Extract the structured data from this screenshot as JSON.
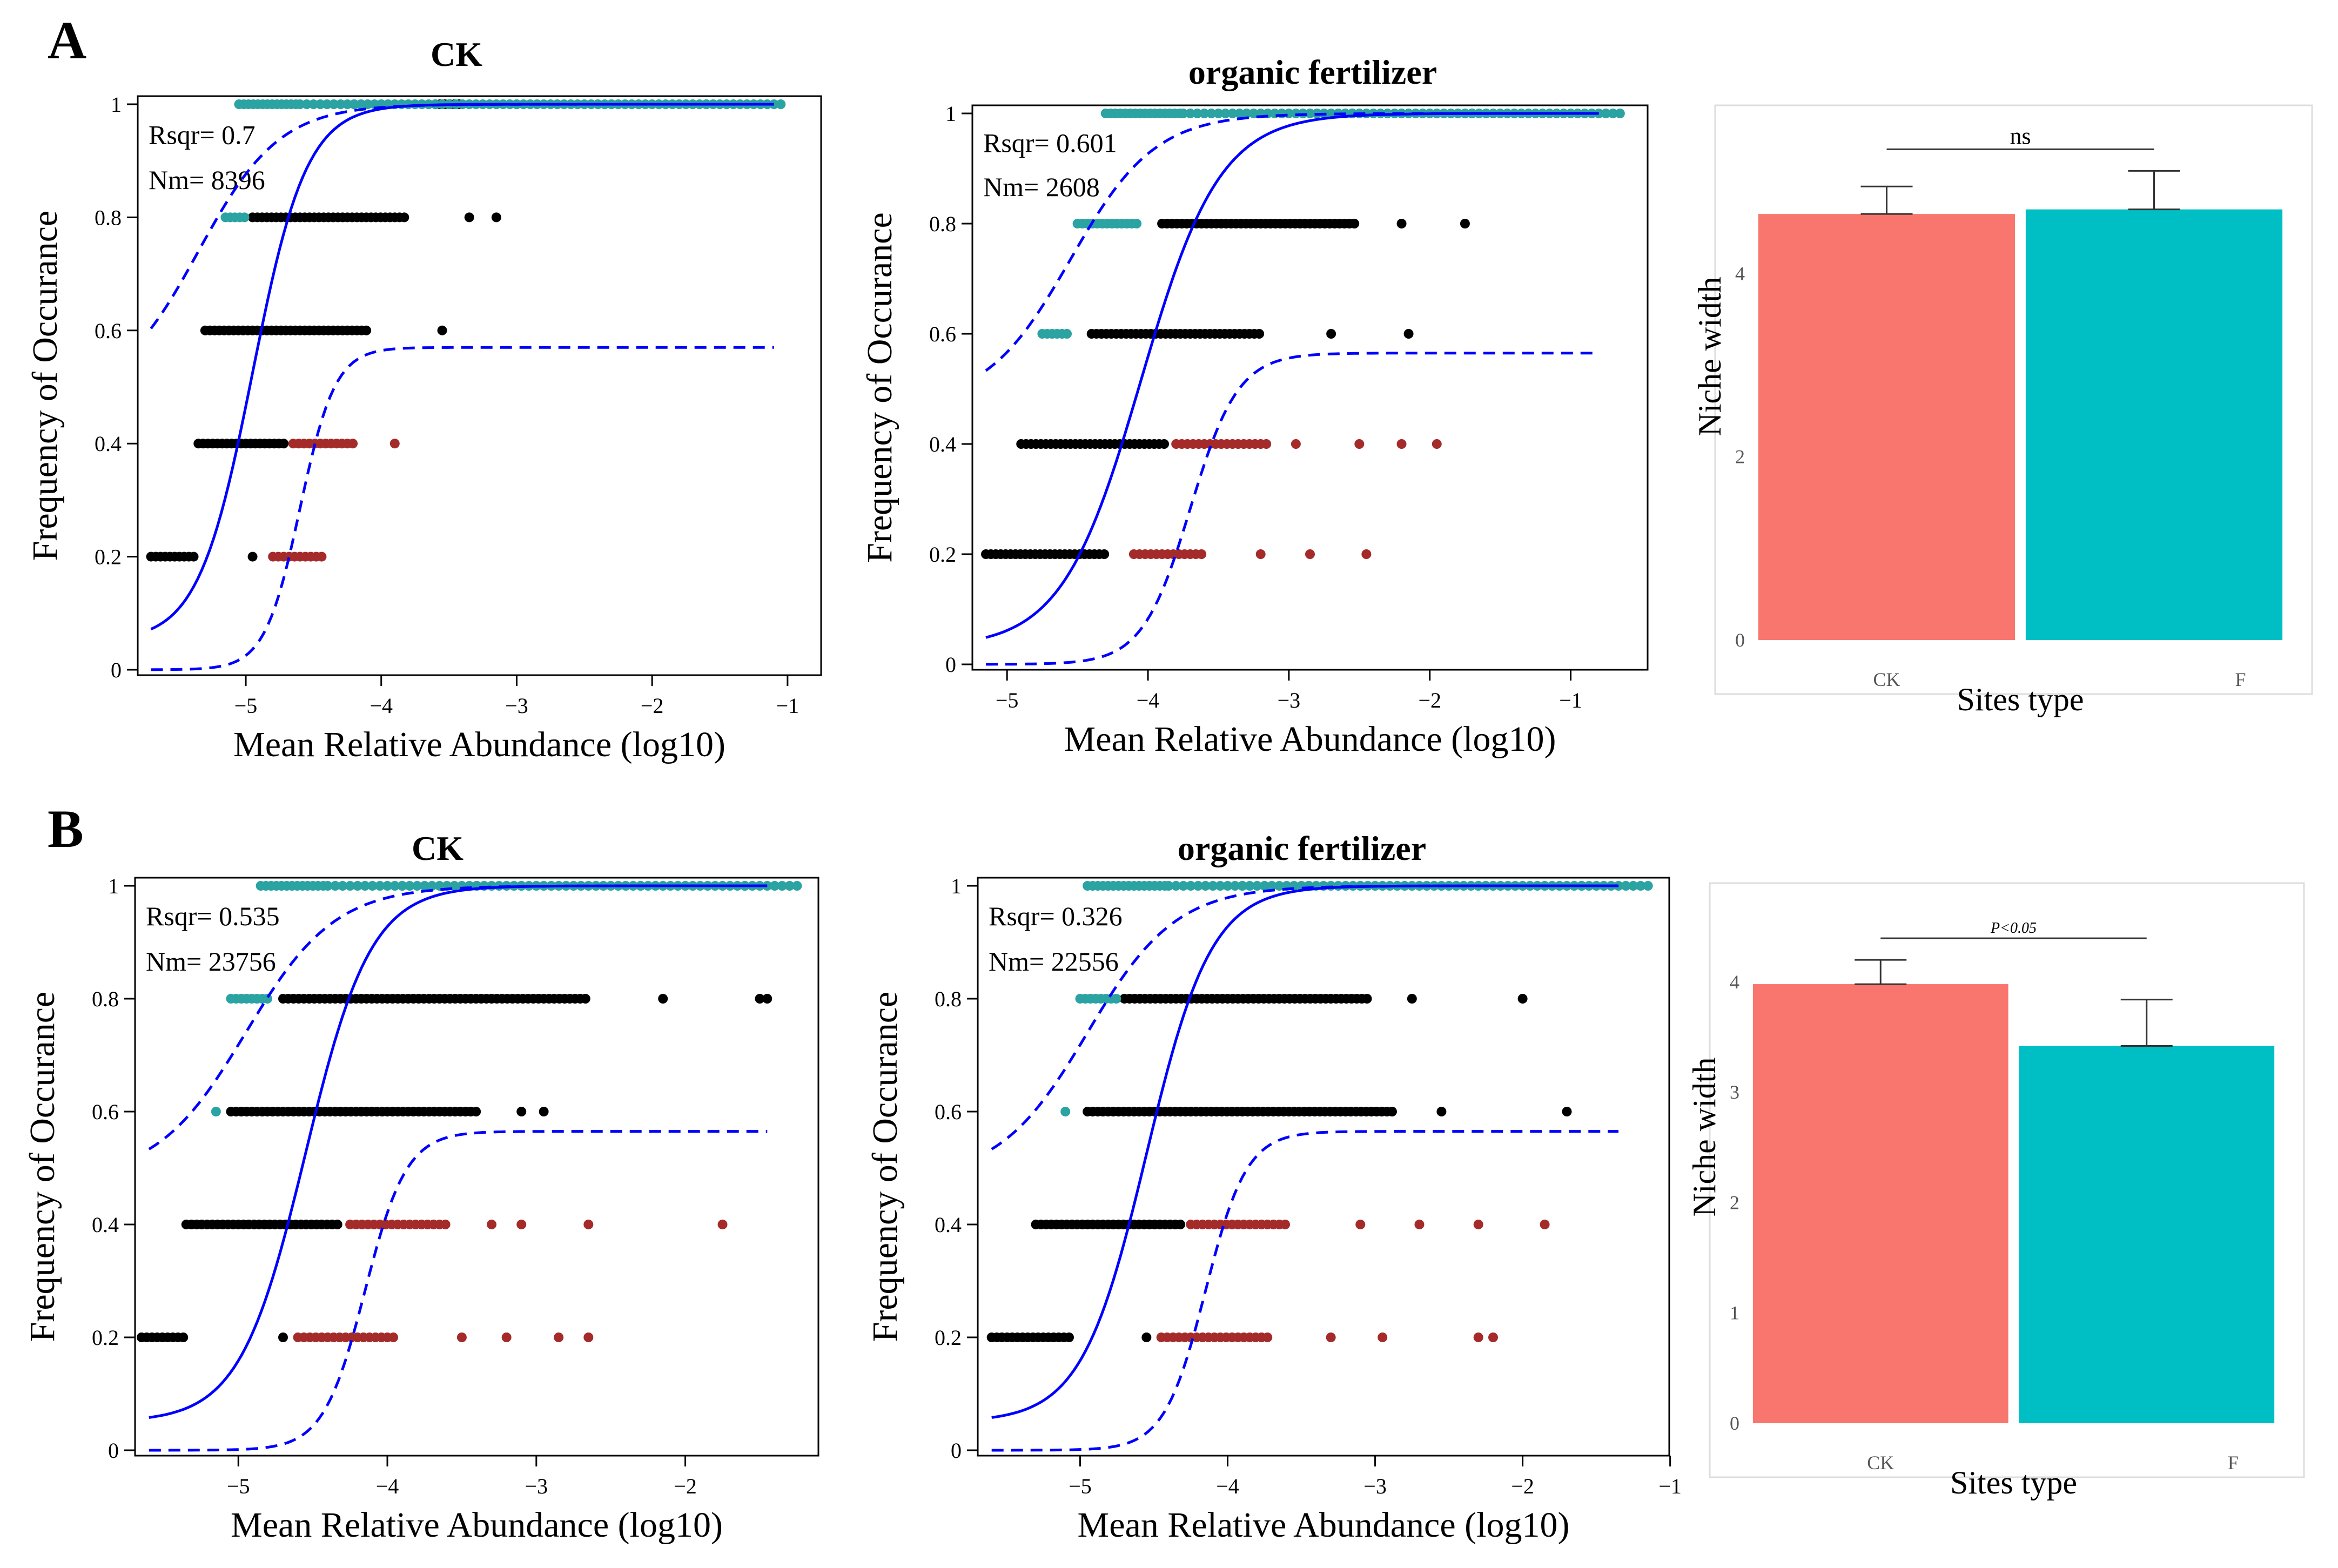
{
  "panels": [
    {
      "id": "A",
      "label": "A",
      "neutral": [
        {
          "title": "CK",
          "rsqr": "Rsqr= 0.7",
          "nm": "Nm= 8396",
          "xlabel": "Mean Relative Abundance (log10)",
          "ylabel": "Frequency of Occurance",
          "xlim": [
            -5.75,
            -0.8
          ],
          "ylim": [
            0,
            1
          ],
          "xticks": [
            -5,
            -4,
            -3,
            -2,
            -1
          ],
          "yticks": [
            0,
            0.2,
            0.4,
            0.6,
            0.8,
            1
          ],
          "ytick_labels": [
            "0",
            "0.2",
            "0.4",
            "0.6",
            "0.8",
            "1"
          ],
          "fit": {
            "m_log10": -4.95,
            "scale": 0.2,
            "min_y": 0.05
          },
          "upper": {
            "m_log10": -5.35,
            "scale": 0.3,
            "min_y": 0.48
          },
          "lower": {
            "m_log10": -4.6,
            "scale": 0.13,
            "max_y": 0.57,
            "min_y": 0.0
          },
          "points": [
            {
              "y": 1.0,
              "cyan": [
                -5.05,
                -4.6,
                -4.2,
                -3.6,
                -3.0,
                -2.3,
                -1.6,
                -1.0
              ],
              "black": [
                -3.6,
                -3.4
              ],
              "red": []
            },
            {
              "y": 0.8,
              "cyan": [
                -5.15,
                -5.0
              ],
              "black": [
                -4.95,
                -3.8,
                -3.35,
                -3.15
              ],
              "red": []
            },
            {
              "y": 0.6,
              "cyan": [],
              "black": [
                -5.3,
                -4.1,
                -3.55
              ],
              "red": []
            },
            {
              "y": 0.4,
              "cyan": [],
              "black": [
                -5.35,
                -4.7
              ],
              "red": [
                -4.65,
                -4.2,
                -3.9
              ]
            },
            {
              "y": 0.2,
              "cyan": [],
              "black": [
                -5.7,
                -5.35,
                -4.95
              ],
              "red": [
                -4.8,
                -4.4
              ]
            }
          ]
        },
        {
          "title": "organic fertilizer",
          "rsqr": "Rsqr= 0.601",
          "nm": "Nm= 2608",
          "xlabel": "Mean Relative Abundance (log10)",
          "ylabel": "Frequency of Occurance",
          "xlim": [
            -5.2,
            -0.5
          ],
          "ylim": [
            0,
            1
          ],
          "xticks": [
            -5,
            -4,
            -3,
            -2,
            -1
          ],
          "yticks": [
            0,
            0.2,
            0.4,
            0.6,
            0.8,
            1
          ],
          "ytick_labels": [
            "0",
            "0.2",
            "0.4",
            "0.6",
            "0.8",
            "1"
          ],
          "fit": {
            "m_log10": -4.05,
            "scale": 0.28,
            "min_y": 0.03
          },
          "upper": {
            "m_log10": -4.55,
            "scale": 0.3,
            "min_y": 0.47
          },
          "lower": {
            "m_log10": -3.7,
            "scale": 0.17,
            "max_y": 0.565,
            "min_y": 0.0
          },
          "points": [
            {
              "y": 1.0,
              "cyan": [
                -4.3,
                -3.75,
                -3.3,
                -2.8,
                -2.2,
                -1.7,
                -1.3,
                -0.6
              ],
              "black": [
                -2.55
              ],
              "red": []
            },
            {
              "y": 0.8,
              "cyan": [
                -4.5,
                -4.05
              ],
              "black": [
                -3.9,
                -2.5,
                -2.2,
                -1.75
              ],
              "red": []
            },
            {
              "y": 0.6,
              "cyan": [
                -4.75,
                -4.55
              ],
              "black": [
                -4.4,
                -3.2,
                -2.7,
                -2.15
              ],
              "red": []
            },
            {
              "y": 0.4,
              "cyan": [],
              "black": [
                -4.9,
                -3.85
              ],
              "red": [
                -3.8,
                -3.15,
                -2.95,
                -2.5,
                -2.2,
                -1.95
              ]
            },
            {
              "y": 0.2,
              "cyan": [],
              "black": [
                -5.15,
                -4.3
              ],
              "red": [
                -4.1,
                -3.6,
                -3.2,
                -2.85,
                -2.45
              ]
            }
          ]
        }
      ],
      "bar": {
        "xlabel": "Sites type",
        "ylabel": "Niche width",
        "categories": [
          "CK",
          "F"
        ],
        "values": [
          4.65,
          4.7
        ],
        "errors": [
          0.3,
          0.42
        ],
        "colors": [
          "#F8766D",
          "#00BFC4"
        ],
        "ylim": [
          0,
          5.6
        ],
        "yticks": [
          0,
          2,
          4
        ],
        "significance": "ns"
      }
    },
    {
      "id": "B",
      "label": "B",
      "neutral": [
        {
          "title": "CK",
          "rsqr": "Rsqr= 0.535",
          "nm": "Nm= 23756",
          "xlabel": "Mean Relative Abundance (log10)",
          "ylabel": "Frequency of Occurance",
          "xlim": [
            -5.65,
            -1.15
          ],
          "ylim": [
            0,
            1
          ],
          "xticks": [
            -5,
            -4,
            -3,
            -2
          ],
          "yticks": [
            0,
            0.2,
            0.4,
            0.6,
            0.8,
            1
          ],
          "ytick_labels": [
            "0",
            "0.2",
            "0.4",
            "0.6",
            "0.8",
            "1"
          ],
          "fit": {
            "m_log10": -4.55,
            "scale": 0.22,
            "min_y": 0.05
          },
          "upper": {
            "m_log10": -4.95,
            "scale": 0.3,
            "min_y": 0.48
          },
          "lower": {
            "m_log10": -4.15,
            "scale": 0.14,
            "max_y": 0.565,
            "min_y": 0.0
          },
          "points": [
            {
              "y": 1.0,
              "cyan": [
                -4.85,
                -4.4,
                -3.9,
                -3.1,
                -2.3,
                -1.6,
                -1.2
              ],
              "black": [
                -3.4
              ],
              "red": []
            },
            {
              "y": 0.8,
              "cyan": [
                -5.05,
                -4.8
              ],
              "black": [
                -4.7,
                -2.65,
                -2.15,
                -1.5,
                -1.45
              ],
              "red": []
            },
            {
              "y": 0.6,
              "cyan": [
                -5.15
              ],
              "black": [
                -5.05,
                -3.4,
                -3.1,
                -2.95
              ],
              "red": []
            },
            {
              "y": 0.4,
              "cyan": [],
              "black": [
                -5.35,
                -4.3
              ],
              "red": [
                -4.25,
                -3.6,
                -3.3,
                -3.1,
                -2.65,
                -1.75
              ]
            },
            {
              "y": 0.2,
              "cyan": [],
              "black": [
                -5.65,
                -5.35,
                -4.7
              ],
              "red": [
                -4.6,
                -3.95,
                -3.5,
                -3.2,
                -2.85,
                -2.65
              ]
            }
          ]
        },
        {
          "title": "organic fertilizer",
          "rsqr": "Rsqr= 0.326",
          "nm": "Nm= 22556",
          "xlabel": "Mean Relative Abundance (log10)",
          "ylabel": "Frequency of Occurance",
          "xlim": [
            -5.65,
            -1.05
          ],
          "ylim": [
            0,
            1
          ],
          "xticks": [
            -5,
            -4,
            -3,
            -2,
            -1
          ],
          "yticks": [
            0,
            0.2,
            0.4,
            0.6,
            0.8,
            1
          ],
          "ytick_labels": [
            "0",
            "0.2",
            "0.4",
            "0.6",
            "0.8",
            "1"
          ],
          "fit": {
            "m_log10": -4.55,
            "scale": 0.22,
            "min_y": 0.05
          },
          "upper": {
            "m_log10": -4.95,
            "scale": 0.3,
            "min_y": 0.48
          },
          "lower": {
            "m_log10": -4.15,
            "scale": 0.14,
            "max_y": 0.565,
            "min_y": 0.0
          },
          "points": [
            {
              "y": 1.0,
              "cyan": [
                -4.95,
                -4.4,
                -3.9,
                -3.1,
                -2.3,
                -1.6,
                -1.1
              ],
              "black": [
                -3.45
              ],
              "red": []
            },
            {
              "y": 0.8,
              "cyan": [
                -5.0,
                -4.75
              ],
              "black": [
                -4.7,
                -3.05,
                -2.75,
                -2.0
              ],
              "red": []
            },
            {
              "y": 0.6,
              "cyan": [
                -5.1
              ],
              "black": [
                -4.95,
                -2.85,
                -2.55,
                -1.7
              ],
              "red": []
            },
            {
              "y": 0.4,
              "cyan": [],
              "black": [
                -5.3,
                -4.3
              ],
              "red": [
                -4.25,
                -3.6,
                -3.1,
                -2.7,
                -2.3,
                -1.85
              ]
            },
            {
              "y": 0.2,
              "cyan": [],
              "black": [
                -5.6,
                -5.05,
                -4.55
              ],
              "red": [
                -4.45,
                -3.7,
                -3.3,
                -2.95,
                -2.3,
                -2.2
              ]
            }
          ]
        }
      ],
      "bar": {
        "xlabel": "Sites type",
        "ylabel": "Niche width",
        "categories": [
          "CK",
          "F"
        ],
        "values": [
          3.98,
          3.42
        ],
        "errors": [
          0.22,
          0.42
        ],
        "colors": [
          "#F8766D",
          "#00BFC4"
        ],
        "ylim": [
          0,
          4.7
        ],
        "yticks": [
          0,
          1,
          2,
          3,
          4
        ],
        "significance": "P<0.05"
      }
    }
  ],
  "colors": {
    "black_points": "#000000",
    "cyan_points": "#2BA3A3",
    "red_points": "#A52A2A",
    "fit_line": "#0000FF",
    "ci_line": "#0000FF"
  },
  "chart_data": [
    {
      "type": "scatter",
      "panel": "A",
      "title": "CK",
      "xlabel": "Mean Relative Abundance (log10)",
      "ylabel": "Frequency of Occurance",
      "xlim": [
        -5.75,
        -0.8
      ],
      "ylim": [
        0,
        1
      ],
      "annotations": [
        "Rsqr= 0.7",
        "Nm= 8396"
      ]
    },
    {
      "type": "scatter",
      "panel": "A",
      "title": "organic fertilizer",
      "xlabel": "Mean Relative Abundance (log10)",
      "ylabel": "Frequency of Occurance",
      "xlim": [
        -5.2,
        -0.5
      ],
      "ylim": [
        0,
        1
      ],
      "annotations": [
        "Rsqr= 0.601",
        "Nm= 2608"
      ]
    },
    {
      "type": "bar",
      "panel": "A",
      "categories": [
        "CK",
        "F"
      ],
      "values": [
        4.65,
        4.7
      ],
      "xlabel": "Sites type",
      "ylabel": "Niche width",
      "annotations": [
        "ns"
      ]
    },
    {
      "type": "scatter",
      "panel": "B",
      "title": "CK",
      "xlabel": "Mean Relative Abundance (log10)",
      "ylabel": "Frequency of Occurance",
      "xlim": [
        -5.65,
        -1.15
      ],
      "ylim": [
        0,
        1
      ],
      "annotations": [
        "Rsqr= 0.535",
        "Nm= 23756"
      ]
    },
    {
      "type": "scatter",
      "panel": "B",
      "title": "organic fertilizer",
      "xlabel": "Mean Relative Abundance (log10)",
      "ylabel": "Frequency of Occurance",
      "xlim": [
        -5.65,
        -1.05
      ],
      "ylim": [
        0,
        1
      ],
      "annotations": [
        "Rsqr= 0.326",
        "Nm= 22556"
      ]
    },
    {
      "type": "bar",
      "panel": "B",
      "categories": [
        "CK",
        "F"
      ],
      "values": [
        3.98,
        3.42
      ],
      "xlabel": "Sites type",
      "ylabel": "Niche width",
      "annotations": [
        "P<0.05"
      ]
    }
  ]
}
